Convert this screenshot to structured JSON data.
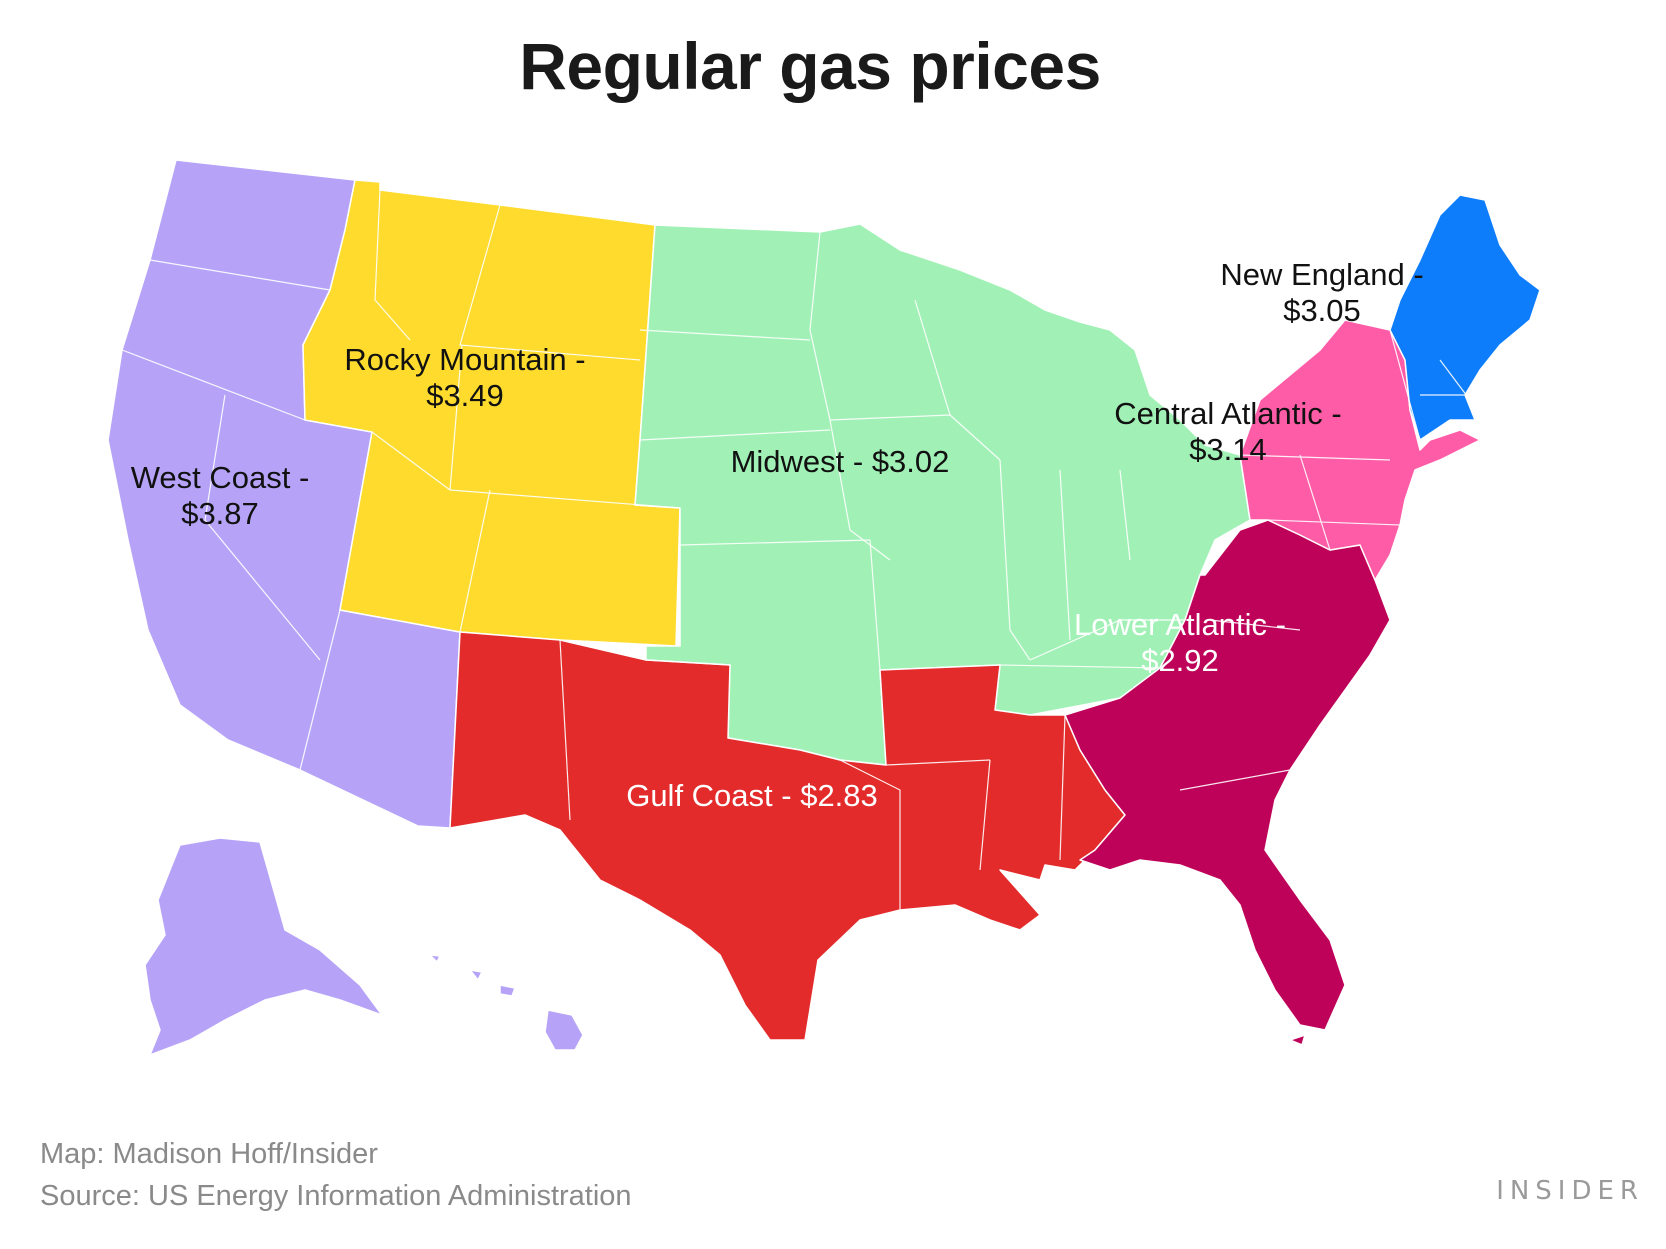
{
  "title": "Regular gas prices",
  "regions": [
    {
      "id": "west-coast",
      "line1": "West Coast -",
      "line2": "$3.87",
      "price": 3.87,
      "color": "#b6a3f8",
      "text_color": "dark"
    },
    {
      "id": "rocky-mountain",
      "line1": "Rocky Mountain -",
      "line2": "$3.49",
      "price": 3.49,
      "color": "#fedb2d",
      "text_color": "dark"
    },
    {
      "id": "midwest",
      "line1": "Midwest - $3.02",
      "line2": "",
      "price": 3.02,
      "color": "#a1f1b6",
      "text_color": "dark"
    },
    {
      "id": "gulf-coast",
      "line1": "Gulf Coast - $2.83",
      "line2": "",
      "price": 2.83,
      "color": "#e32b2b",
      "text_color": "light"
    },
    {
      "id": "lower-atlantic",
      "line1": "Lower Atlantic -",
      "line2": "$2.92",
      "price": 2.92,
      "color": "#bf0259",
      "text_color": "light"
    },
    {
      "id": "central-atlantic",
      "line1": "Central Atlantic -",
      "line2": "$3.14",
      "price": 3.14,
      "color": "#ff5ca8",
      "text_color": "dark"
    },
    {
      "id": "new-england",
      "line1": "New England -",
      "line2": "$3.05",
      "price": 3.05,
      "color": "#0d7dfc",
      "text_color": "dark"
    }
  ],
  "footer": {
    "credit": "Map: Madison Hoff/Insider",
    "source": "Source:  US Energy Information Administration"
  },
  "logo": "INSIDER"
}
